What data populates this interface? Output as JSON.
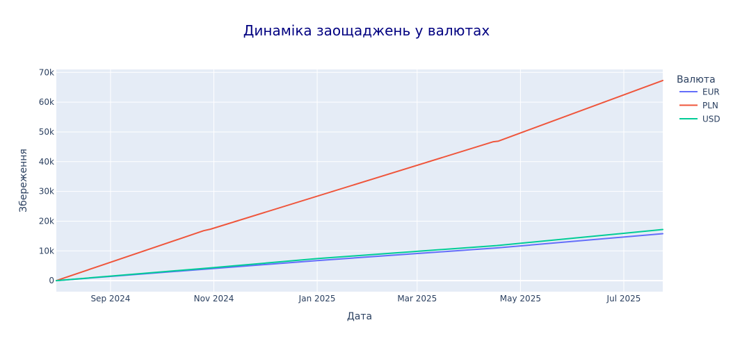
{
  "chart_data": {
    "type": "line",
    "title": "Динаміка заощаджень у валютах",
    "xlabel": "Дата",
    "ylabel": "Збереження",
    "x_ticks": [
      {
        "date": "2024-09-01",
        "label": "Sep 2024"
      },
      {
        "date": "2024-11-01",
        "label": "Nov 2024"
      },
      {
        "date": "2025-01-01",
        "label": "Jan 2025"
      },
      {
        "date": "2025-03-01",
        "label": "Mar 2025"
      },
      {
        "date": "2025-05-01",
        "label": "May 2025"
      },
      {
        "date": "2025-07-01",
        "label": "Jul 2025"
      }
    ],
    "y_ticks": [
      {
        "value": 0,
        "label": "0"
      },
      {
        "value": 10000,
        "label": "10k"
      },
      {
        "value": 20000,
        "label": "20k"
      },
      {
        "value": 30000,
        "label": "30k"
      },
      {
        "value": 40000,
        "label": "40k"
      },
      {
        "value": 50000,
        "label": "50k"
      },
      {
        "value": 60000,
        "label": "60k"
      },
      {
        "value": 70000,
        "label": "70k"
      }
    ],
    "xlim": [
      "2024-07-31",
      "2025-07-24"
    ],
    "ylim": [
      -3700,
      71000
    ],
    "grid": true,
    "legend": {
      "title": "Валюта",
      "position": "right"
    },
    "series": [
      {
        "name": "EUR",
        "color": "#636efa",
        "points": [
          [
            "2024-07-31",
            0
          ],
          [
            "2024-10-30",
            4000
          ],
          [
            "2025-01-01",
            6750
          ],
          [
            "2025-04-17",
            11000
          ],
          [
            "2025-07-24",
            15800
          ]
        ]
      },
      {
        "name": "PLN",
        "color": "#ef553b",
        "points": [
          [
            "2024-07-31",
            0
          ],
          [
            "2024-10-26",
            16800
          ],
          [
            "2024-10-30",
            17300
          ],
          [
            "2025-04-15",
            46700
          ],
          [
            "2025-04-18",
            46900
          ],
          [
            "2025-07-24",
            67300
          ]
        ]
      },
      {
        "name": "USD",
        "color": "#00cc96",
        "points": [
          [
            "2024-07-31",
            0
          ],
          [
            "2024-10-30",
            4300
          ],
          [
            "2025-01-01",
            7400
          ],
          [
            "2025-04-17",
            11800
          ],
          [
            "2025-07-24",
            17200
          ]
        ]
      }
    ]
  }
}
